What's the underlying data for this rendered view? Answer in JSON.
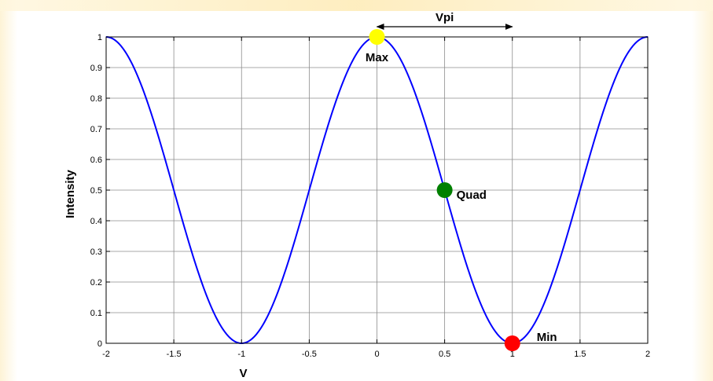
{
  "chart_data": {
    "type": "line",
    "xlabel": "V",
    "ylabel": "Intensity",
    "xlim": [
      -2,
      2
    ],
    "ylim": [
      0,
      1
    ],
    "xticks": [
      -2,
      -1.5,
      -1,
      -0.5,
      0,
      0.5,
      1,
      1.5,
      2
    ],
    "xtick_labels": [
      "-2",
      "-1.5",
      "-1",
      "-0.5",
      "0",
      "0.5",
      "1",
      "1.5",
      "2"
    ],
    "yticks": [
      0,
      0.1,
      0.2,
      0.3,
      0.4,
      0.5,
      0.6,
      0.7,
      0.8,
      0.9,
      1
    ],
    "ytick_labels": [
      "0",
      "0.1",
      "0.2",
      "0.3",
      "0.4",
      "0.5",
      "0.6",
      "0.7",
      "0.8",
      "0.9",
      "1"
    ],
    "grid": true,
    "series": [
      {
        "color": "#0000ff",
        "function": "cos^2(pi*V/2)",
        "x": [
          -2,
          -1.75,
          -1.5,
          -1.25,
          -1,
          -0.75,
          -0.5,
          -0.25,
          0,
          0.25,
          0.5,
          0.75,
          1,
          1.25,
          1.5,
          1.75,
          2
        ],
        "y": [
          1,
          0.854,
          0.5,
          0.146,
          0,
          0.146,
          0.5,
          0.854,
          1,
          0.854,
          0.5,
          0.146,
          0,
          0.146,
          0.5,
          0.854,
          1
        ]
      }
    ],
    "markers": [
      {
        "label": "Max",
        "x": 0,
        "y": 1,
        "color": "#ffff00"
      },
      {
        "label": "Quad",
        "x": 0.5,
        "y": 0.5,
        "color": "#008000"
      },
      {
        "label": "Min",
        "x": 1,
        "y": 0,
        "color": "#ff0000"
      }
    ],
    "annotations": [
      {
        "text": "Vpi",
        "type": "double-arrow",
        "x_start": 0,
        "x_end": 1
      }
    ]
  }
}
